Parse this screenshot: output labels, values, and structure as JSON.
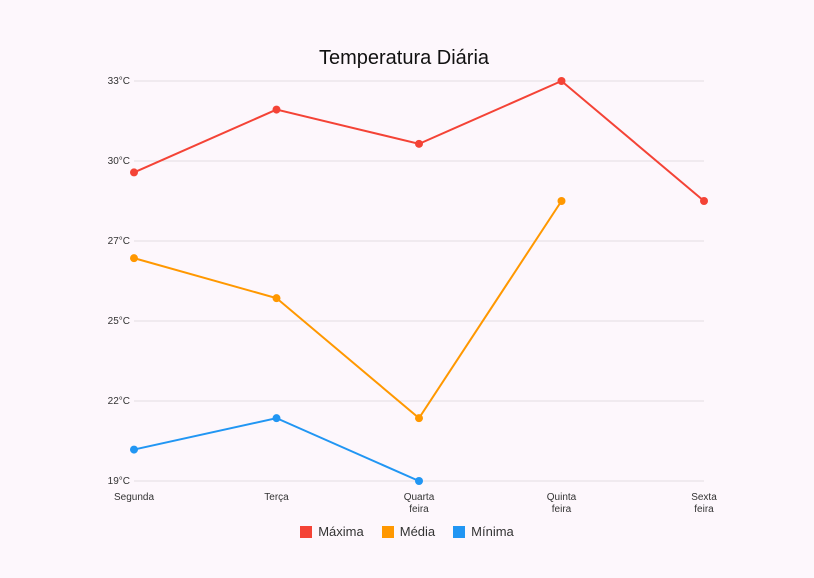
{
  "chart_data": {
    "type": "line",
    "title": "Temperatura Diária",
    "categories": [
      [
        "Segunda"
      ],
      [
        "Terça"
      ],
      [
        "Quarta",
        "feira"
      ],
      [
        "Quinta",
        "feira"
      ],
      [
        "Sexta",
        "feira"
      ]
    ],
    "y_ticks": [
      19,
      22,
      25,
      27,
      30,
      33
    ],
    "y_tick_labels": [
      "19°C",
      "22°C",
      "25°C",
      "27°C",
      "30°C",
      "33°C"
    ],
    "ylim": [
      19,
      33
    ],
    "grid": true,
    "legend_position": "bottom",
    "series": [
      {
        "name": "Máxima",
        "color": "#f44336",
        "values": [
          29.8,
          32.0,
          30.8,
          33.0,
          28.8
        ]
      },
      {
        "name": "Média",
        "color": "#ff9800",
        "values": [
          26.8,
          25.4,
          21.2,
          28.8,
          null
        ]
      },
      {
        "name": "Mínima",
        "color": "#2196f3",
        "values": [
          20.1,
          21.2,
          19.0,
          null,
          null
        ]
      }
    ]
  }
}
